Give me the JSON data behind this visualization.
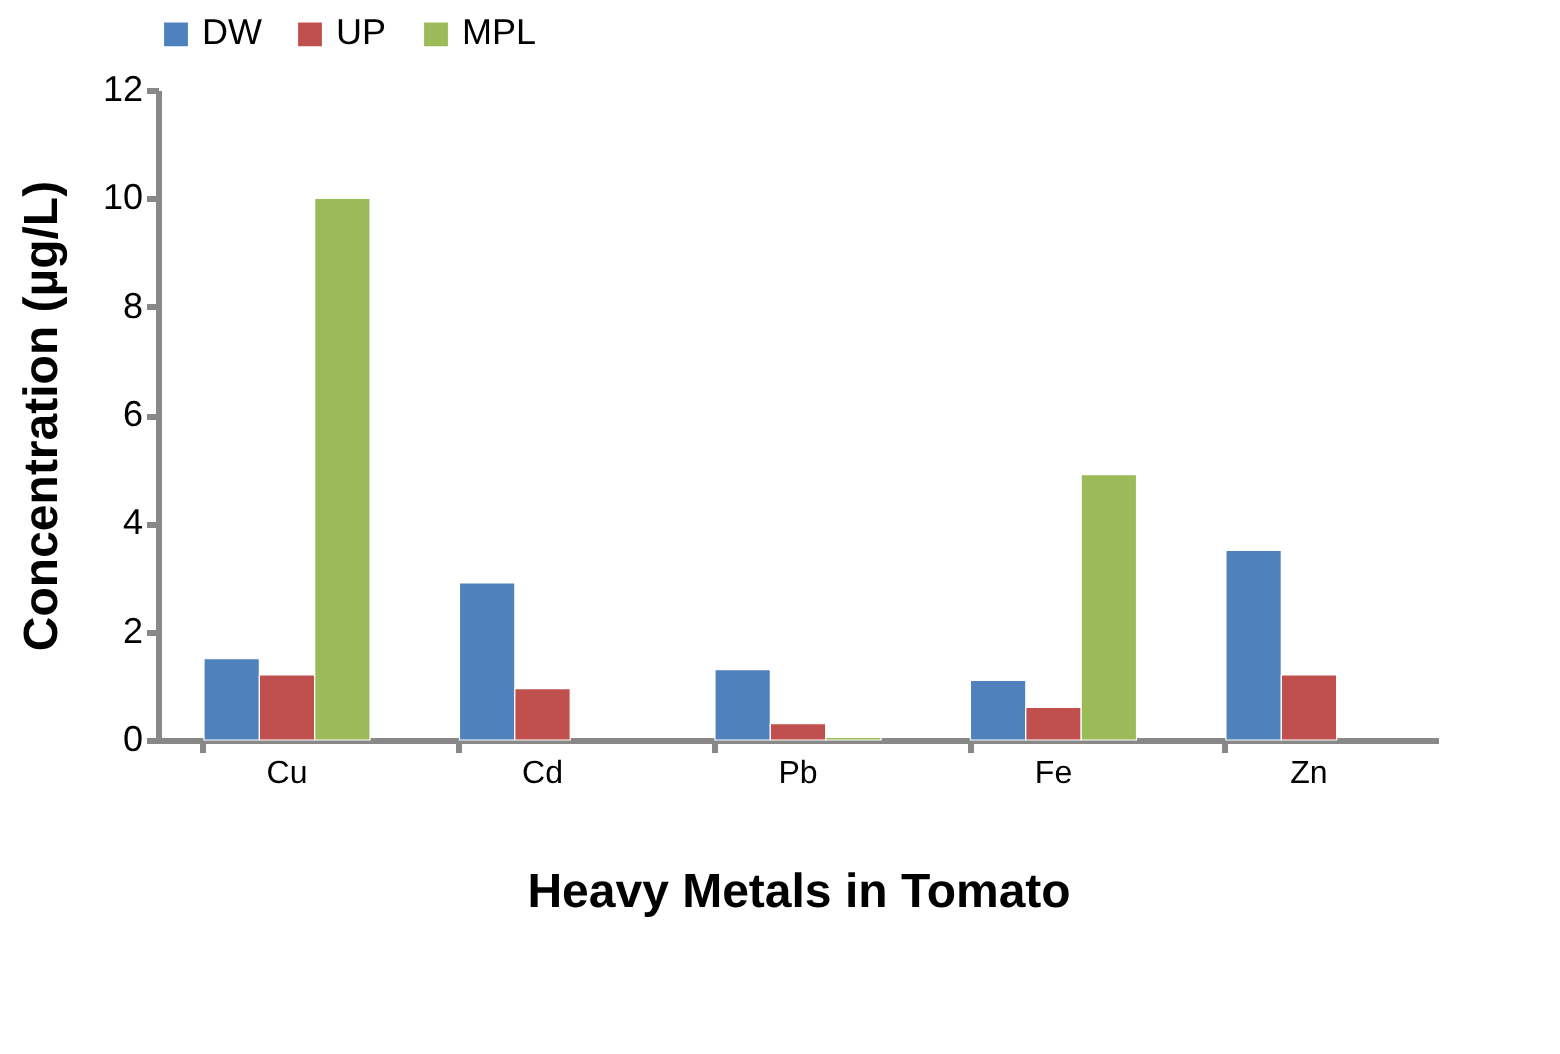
{
  "chart_data": {
    "type": "bar",
    "xlabel": "Heavy Metals in Tomato",
    "ylabel": "Concentration (µg/L)",
    "categories": [
      "Cu",
      "Cd",
      "Pb",
      "Fe",
      "Zn"
    ],
    "series": [
      {
        "name": "DW",
        "color": "#4f81bd",
        "values": [
          1.5,
          2.9,
          1.3,
          1.1,
          3.5
        ]
      },
      {
        "name": "UP",
        "color": "#c0504d",
        "values": [
          1.2,
          0.95,
          0.3,
          0.6,
          1.2
        ]
      },
      {
        "name": "MPL",
        "color": "#9bbb59",
        "values": [
          10,
          null,
          0.05,
          4.9,
          null
        ]
      }
    ],
    "ylim": [
      0,
      12
    ],
    "yticks": [
      0,
      2,
      4,
      6,
      8,
      10,
      12
    ],
    "grid": false,
    "legend": "top"
  }
}
